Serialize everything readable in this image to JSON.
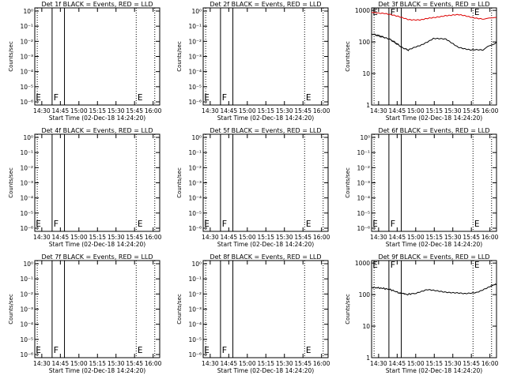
{
  "page": {
    "background": "#ffffff"
  },
  "colors": {
    "axis": "#000000",
    "events": "#000000",
    "lld": "#dd0000"
  },
  "common": {
    "ylabel": "Counts/sec",
    "xlabel": "Start Time (02-Dec-18 14:24:20)",
    "xticks": [
      "14:30",
      "14:45",
      "15:00",
      "15:15",
      "15:30",
      "15:45",
      "16:00"
    ],
    "xlim_minutes_after_1424_20": [
      0,
      101
    ],
    "vertical_lines": [
      {
        "label": "dotted",
        "minutes": 2.0
      },
      {
        "label": "solid",
        "minutes": 14.0
      },
      {
        "label": "solid",
        "minutes": 24.0
      },
      {
        "label": "dotted",
        "minutes": 82.0
      },
      {
        "label": "dotted",
        "minutes": 97.0
      }
    ],
    "markers": [
      {
        "text": "E",
        "minutes": 0.8
      },
      {
        "text": "F",
        "minutes": 15.0
      },
      {
        "text": "E",
        "minutes": 83.0
      }
    ]
  },
  "chart_data": [
    {
      "type": "line",
      "title": "Det 1f BLACK = Events, RED = LLD",
      "ylabel": "Counts/sec",
      "xlabel": "Start Time (02-Dec-18 14:24:20)",
      "yscale": "log",
      "ylim": [
        1,
        10000000
      ],
      "yticks": [
        "10⁰",
        "10⁻¹",
        "10⁻²",
        "10⁻³",
        "10⁻⁴",
        "10⁻⁵",
        "10⁻⁶"
      ],
      "series": []
    },
    {
      "type": "line",
      "title": "Det 2f BLACK = Events, RED = LLD",
      "ylabel": "Counts/sec",
      "xlabel": "Start Time (02-Dec-18 14:24:20)",
      "yscale": "log",
      "ylim": [
        1,
        10000000
      ],
      "yticks": [
        "10⁰",
        "10⁻¹",
        "10⁻²",
        "10⁻³",
        "10⁻⁴",
        "10⁻⁵",
        "10⁻⁶"
      ],
      "series": []
    },
    {
      "type": "line",
      "title": "Det 3f BLACK = Events, RED = LLD",
      "ylabel": "Counts/sec",
      "xlabel": "Start Time (02-Dec-18 14:24:20)",
      "yscale": "log",
      "ylim": [
        1,
        1200
      ],
      "yticks": [
        "1000",
        "100",
        "10",
        "1"
      ],
      "series": [
        {
          "color": "red",
          "x": [
            0,
            10,
            20,
            30,
            40,
            50,
            60,
            70,
            80,
            90,
            101
          ],
          "y": [
            880,
            820,
            650,
            520,
            500,
            580,
            700,
            720,
            620,
            540,
            600
          ]
        },
        {
          "color": "black",
          "x": [
            0,
            5,
            10,
            15,
            20,
            25,
            30,
            40,
            50,
            60,
            70,
            80,
            90,
            101
          ],
          "y": [
            180,
            160,
            140,
            120,
            90,
            65,
            55,
            80,
            130,
            120,
            70,
            55,
            55,
            100
          ]
        }
      ]
    },
    {
      "type": "line",
      "title": "Det 4f BLACK = Events, RED = LLD",
      "ylabel": "Counts/sec",
      "xlabel": "Start Time (02-Dec-18 14:24:20)",
      "yscale": "log",
      "ylim": [
        1,
        10000000
      ],
      "yticks": [
        "10⁰",
        "10⁻¹",
        "10⁻²",
        "10⁻³",
        "10⁻⁴",
        "10⁻⁵",
        "10⁻⁶"
      ],
      "series": []
    },
    {
      "type": "line",
      "title": "Det 5f BLACK = Events, RED = LLD",
      "ylabel": "Counts/sec",
      "xlabel": "Start Time (02-Dec-18 14:24:20)",
      "yscale": "log",
      "ylim": [
        1,
        10000000
      ],
      "yticks": [
        "10⁰",
        "10⁻¹",
        "10⁻²",
        "10⁻³",
        "10⁻⁴",
        "10⁻⁵",
        "10⁻⁶"
      ],
      "series": []
    },
    {
      "type": "line",
      "title": "Det 6f BLACK = Events, RED = LLD",
      "ylabel": "Counts/sec",
      "xlabel": "Start Time (02-Dec-18 14:24:20)",
      "yscale": "log",
      "ylim": [
        1,
        10000000
      ],
      "yticks": [
        "10⁰",
        "10⁻¹",
        "10⁻²",
        "10⁻³",
        "10⁻⁴",
        "10⁻⁵",
        "10⁻⁶"
      ],
      "series": []
    },
    {
      "type": "line",
      "title": "Det 7f BLACK = Events, RED = LLD",
      "ylabel": "Counts/sec",
      "xlabel": "Start Time (02-Dec-18 14:24:20)",
      "yscale": "log",
      "ylim": [
        1,
        10000000
      ],
      "yticks": [
        "10⁰",
        "10⁻¹",
        "10⁻²",
        "10⁻³",
        "10⁻⁴",
        "10⁻⁵",
        "10⁻⁶"
      ],
      "series": []
    },
    {
      "type": "line",
      "title": "Det 8f BLACK = Events, RED = LLD",
      "ylabel": "Counts/sec",
      "xlabel": "Start Time (02-Dec-18 14:24:20)",
      "yscale": "log",
      "ylim": [
        1,
        10000000
      ],
      "yticks": [
        "10⁰",
        "10⁻¹",
        "10⁻²",
        "10⁻³",
        "10⁻⁴",
        "10⁻⁵",
        "10⁻⁶"
      ],
      "series": []
    },
    {
      "type": "line",
      "title": "Det 9f BLACK = Events, RED = LLD",
      "ylabel": "Counts/sec",
      "xlabel": "Start Time (02-Dec-18 14:24:20)",
      "yscale": "log",
      "ylim": [
        1,
        1200
      ],
      "yticks": [
        "1000",
        "100",
        "10",
        "1"
      ],
      "series": [
        {
          "color": "black",
          "x": [
            0,
            8,
            15,
            22,
            28,
            35,
            45,
            55,
            65,
            75,
            85,
            95,
            101
          ],
          "y": [
            170,
            160,
            145,
            115,
            100,
            110,
            140,
            130,
            115,
            105,
            120,
            170,
            220
          ]
        }
      ]
    }
  ]
}
